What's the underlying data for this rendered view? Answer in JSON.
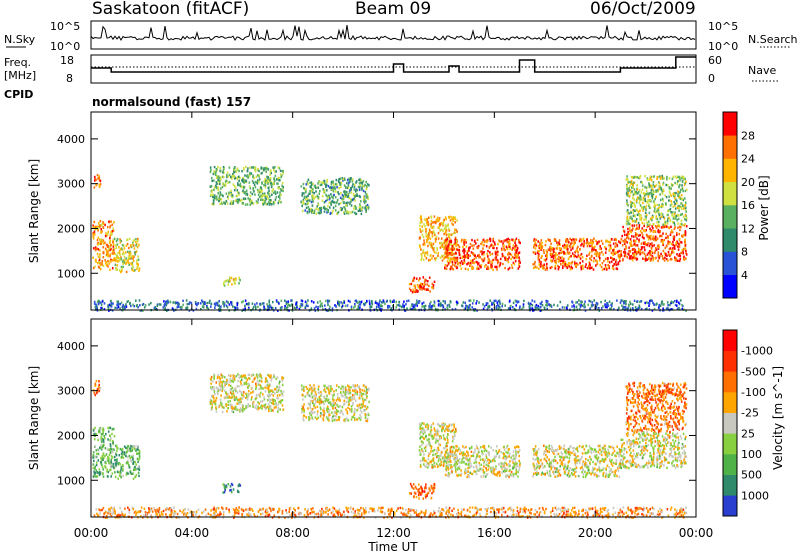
{
  "header": {
    "station": "Saskatoon (fitACF)",
    "beam": "Beam 09",
    "date": "06/Oct/2009"
  },
  "nsky": {
    "label": "N.Sky",
    "tick_top": "10^5",
    "tick_bottom": "10^0",
    "right_label": "N.Search",
    "right_tick_top": "10^5",
    "right_tick_bottom": "10^0"
  },
  "freq": {
    "label_line1": "Freq.",
    "label_line2": "[MHz]",
    "tick_top": "18",
    "tick_bottom": "8",
    "right_label": "Nave",
    "right_tick_top": "60",
    "right_tick_bottom": "0",
    "cpid_label": "CPID"
  },
  "mode_label": "normalsound (fast) 157",
  "chart_data": [
    {
      "type": "heatmap",
      "title": "",
      "xlabel": "",
      "ylabel": "Slant Range [km]",
      "x_unit": "hours UT",
      "xlim": [
        0,
        24
      ],
      "ylim": [
        180,
        4600
      ],
      "y_ticks": [
        1000,
        2000,
        3000,
        4000
      ],
      "colorbar_label": "Power [dB]",
      "colorbar_ticks": [
        "4",
        "8",
        "12",
        "16",
        "20",
        "24",
        "28"
      ],
      "colorbar_colors": [
        "#0000ff",
        "#2a52d6",
        "#2e8a6a",
        "#58b060",
        "#cfe040",
        "#ffb400",
        "#ff7000",
        "#ff0000"
      ],
      "scatter_regions": [
        {
          "t0": 0.05,
          "t1": 0.35,
          "r0": 2900,
          "r1": 3250,
          "level": 0.8
        },
        {
          "t0": 0.05,
          "t1": 0.9,
          "r0": 1100,
          "r1": 2200,
          "level": 0.75
        },
        {
          "t0": 0.9,
          "t1": 1.9,
          "r0": 1050,
          "r1": 1800,
          "level": 0.6
        },
        {
          "t0": 4.7,
          "t1": 7.6,
          "r0": 2550,
          "r1": 3400,
          "level": 0.45
        },
        {
          "t0": 8.3,
          "t1": 11.0,
          "r0": 2350,
          "r1": 3150,
          "level": 0.4
        },
        {
          "t0": 13.0,
          "t1": 14.5,
          "r0": 1300,
          "r1": 2300,
          "level": 0.7
        },
        {
          "t0": 14.0,
          "t1": 17.0,
          "r0": 1100,
          "r1": 1800,
          "level": 0.85
        },
        {
          "t0": 17.5,
          "t1": 21.0,
          "r0": 1100,
          "r1": 1800,
          "level": 0.82
        },
        {
          "t0": 21.0,
          "t1": 23.6,
          "r0": 1300,
          "r1": 2100,
          "level": 0.85
        },
        {
          "t0": 21.2,
          "t1": 23.6,
          "r0": 2100,
          "r1": 3200,
          "level": 0.5
        },
        {
          "t0": 12.6,
          "t1": 13.6,
          "r0": 600,
          "r1": 950,
          "level": 0.85
        },
        {
          "t0": 5.2,
          "t1": 5.9,
          "r0": 750,
          "r1": 950,
          "level": 0.6
        },
        {
          "t0": 0.1,
          "t1": 23.6,
          "r0": 190,
          "r1": 420,
          "level": 0.25
        }
      ]
    },
    {
      "type": "heatmap",
      "title": "",
      "xlabel": "Time UT",
      "ylabel": "Slant Range [km]",
      "x_unit": "hours UT",
      "xlim": [
        0,
        24
      ],
      "ylim": [
        180,
        4600
      ],
      "y_ticks": [
        1000,
        2000,
        3000,
        4000
      ],
      "x_tick_labels": [
        "00:00",
        "04:00",
        "08:00",
        "12:00",
        "16:00",
        "20:00",
        "00:00"
      ],
      "colorbar_label": "Velocity [m s^-1]",
      "colorbar_ticks": [
        "1000",
        "500",
        "100",
        "25",
        "-25",
        "-100",
        "-500",
        "-1000"
      ],
      "colorbar_colors": [
        "#2a3fd0",
        "#2e8a6a",
        "#4fb248",
        "#88d040",
        "#c8c8c0",
        "#ffa500",
        "#ff7000",
        "#ff3000",
        "#ff0000"
      ],
      "scatter_regions": [
        {
          "t0": 0.05,
          "t1": 0.35,
          "r0": 2900,
          "r1": 3250,
          "level": 0.7
        },
        {
          "t0": 0.05,
          "t1": 0.9,
          "r0": 1100,
          "r1": 2200,
          "level": 0.3
        },
        {
          "t0": 0.9,
          "t1": 1.9,
          "r0": 1050,
          "r1": 1800,
          "level": 0.3
        },
        {
          "t0": 4.7,
          "t1": 7.6,
          "r0": 2550,
          "r1": 3400,
          "level": 0.5
        },
        {
          "t0": 8.3,
          "t1": 11.0,
          "r0": 2350,
          "r1": 3150,
          "level": 0.5
        },
        {
          "t0": 13.0,
          "t1": 14.5,
          "r0": 1300,
          "r1": 2300,
          "level": 0.5
        },
        {
          "t0": 14.0,
          "t1": 17.0,
          "r0": 1100,
          "r1": 1800,
          "level": 0.5
        },
        {
          "t0": 17.5,
          "t1": 21.0,
          "r0": 1100,
          "r1": 1800,
          "level": 0.5
        },
        {
          "t0": 21.0,
          "t1": 23.6,
          "r0": 1300,
          "r1": 2100,
          "level": 0.5
        },
        {
          "t0": 21.2,
          "t1": 23.6,
          "r0": 2100,
          "r1": 3200,
          "level": 0.72
        },
        {
          "t0": 12.6,
          "t1": 13.6,
          "r0": 600,
          "r1": 950,
          "level": 0.75
        },
        {
          "t0": 5.2,
          "t1": 5.9,
          "r0": 750,
          "r1": 950,
          "level": 0.2
        },
        {
          "t0": 0.1,
          "t1": 23.6,
          "r0": 190,
          "r1": 420,
          "level": 0.65
        }
      ]
    }
  ]
}
